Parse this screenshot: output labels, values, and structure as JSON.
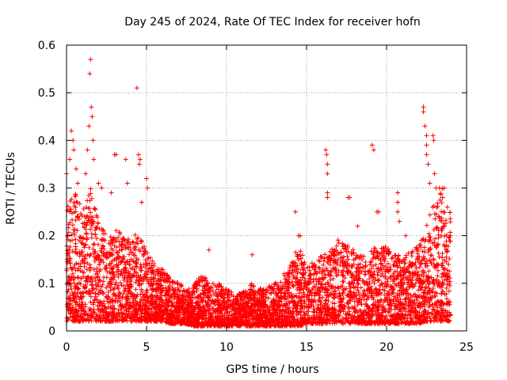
{
  "chart_data": {
    "type": "scatter",
    "title": "Day 245 of 2024, Rate Of TEC Index for receiver hofn",
    "xlabel": "GPS time / hours",
    "ylabel": "ROTI / TECUs",
    "xlim": [
      0,
      25
    ],
    "ylim": [
      0,
      0.6
    ],
    "xticks": [
      "0",
      "5",
      "10",
      "15",
      "20",
      "25"
    ],
    "yticks": [
      "0",
      "0.1",
      "0.2",
      "0.3",
      "0.4",
      "0.5",
      "0.6"
    ],
    "grid": true,
    "marker": "+",
    "colors": {
      "points": "#ff0000",
      "grid": "#a0a0a0",
      "axes": "#000000"
    },
    "envelope": {
      "hours": [
        0,
        0.5,
        1,
        1.5,
        2,
        2.5,
        3,
        3.5,
        4,
        4.5,
        5,
        5.5,
        6,
        6.5,
        7,
        7.5,
        8,
        8.5,
        9,
        9.5,
        10,
        10.5,
        11,
        11.5,
        12,
        12.5,
        13,
        13.5,
        14,
        14.5,
        15,
        15.5,
        16,
        16.5,
        17,
        17.5,
        18,
        18.5,
        19,
        19.5,
        20,
        20.5,
        21,
        21.5,
        22,
        22.5,
        23,
        23.5,
        24
      ],
      "typical_max": [
        0.26,
        0.3,
        0.25,
        0.3,
        0.24,
        0.2,
        0.22,
        0.2,
        0.19,
        0.21,
        0.17,
        0.14,
        0.13,
        0.11,
        0.1,
        0.09,
        0.1,
        0.12,
        0.1,
        0.1,
        0.09,
        0.08,
        0.08,
        0.1,
        0.09,
        0.09,
        0.1,
        0.11,
        0.14,
        0.18,
        0.14,
        0.15,
        0.16,
        0.17,
        0.2,
        0.18,
        0.17,
        0.16,
        0.18,
        0.17,
        0.18,
        0.16,
        0.16,
        0.17,
        0.18,
        0.22,
        0.28,
        0.3,
        0.25
      ],
      "typical_min": [
        0.02,
        0.02,
        0.02,
        0.02,
        0.02,
        0.02,
        0.02,
        0.02,
        0.02,
        0.02,
        0.02,
        0.02,
        0.02,
        0.015,
        0.015,
        0.015,
        0.01,
        0.01,
        0.01,
        0.01,
        0.01,
        0.01,
        0.01,
        0.01,
        0.01,
        0.01,
        0.01,
        0.01,
        0.01,
        0.01,
        0.015,
        0.015,
        0.015,
        0.015,
        0.015,
        0.015,
        0.015,
        0.015,
        0.015,
        0.015,
        0.015,
        0.015,
        0.015,
        0.015,
        0.015,
        0.02,
        0.02,
        0.02,
        0.02
      ]
    },
    "outliers": [
      [
        0.0,
        0.33
      ],
      [
        0.2,
        0.36
      ],
      [
        0.3,
        0.42
      ],
      [
        0.4,
        0.4
      ],
      [
        0.45,
        0.38
      ],
      [
        0.6,
        0.34
      ],
      [
        0.7,
        0.31
      ],
      [
        1.2,
        0.33
      ],
      [
        1.3,
        0.38
      ],
      [
        1.4,
        0.43
      ],
      [
        1.45,
        0.54
      ],
      [
        1.5,
        0.57
      ],
      [
        1.55,
        0.47
      ],
      [
        1.6,
        0.45
      ],
      [
        1.65,
        0.4
      ],
      [
        1.7,
        0.36
      ],
      [
        2.0,
        0.31
      ],
      [
        2.2,
        0.3
      ],
      [
        2.8,
        0.29
      ],
      [
        3.0,
        0.37
      ],
      [
        3.1,
        0.37
      ],
      [
        3.7,
        0.36
      ],
      [
        3.8,
        0.31
      ],
      [
        4.4,
        0.51
      ],
      [
        4.5,
        0.37
      ],
      [
        4.6,
        0.36
      ],
      [
        4.55,
        0.35
      ],
      [
        4.7,
        0.27
      ],
      [
        5.0,
        0.32
      ],
      [
        5.05,
        0.3
      ],
      [
        8.9,
        0.17
      ],
      [
        11.6,
        0.16
      ],
      [
        13.6,
        0.12
      ],
      [
        14.3,
        0.25
      ],
      [
        14.5,
        0.2
      ],
      [
        14.6,
        0.2
      ],
      [
        16.2,
        0.38
      ],
      [
        16.25,
        0.37
      ],
      [
        16.3,
        0.35
      ],
      [
        16.3,
        0.33
      ],
      [
        16.3,
        0.29
      ],
      [
        16.3,
        0.28
      ],
      [
        17.6,
        0.28
      ],
      [
        17.7,
        0.28
      ],
      [
        18.2,
        0.22
      ],
      [
        19.1,
        0.39
      ],
      [
        19.2,
        0.38
      ],
      [
        19.4,
        0.25
      ],
      [
        19.5,
        0.25
      ],
      [
        20.7,
        0.29
      ],
      [
        20.7,
        0.27
      ],
      [
        20.7,
        0.25
      ],
      [
        20.8,
        0.23
      ],
      [
        21.2,
        0.2
      ],
      [
        22.3,
        0.47
      ],
      [
        22.3,
        0.46
      ],
      [
        22.4,
        0.43
      ],
      [
        22.5,
        0.41
      ],
      [
        22.5,
        0.39
      ],
      [
        22.5,
        0.37
      ],
      [
        22.6,
        0.35
      ],
      [
        22.7,
        0.31
      ],
      [
        22.9,
        0.41
      ],
      [
        22.95,
        0.4
      ],
      [
        23.0,
        0.33
      ],
      [
        23.1,
        0.3
      ],
      [
        23.3,
        0.3
      ],
      [
        23.5,
        0.28
      ],
      [
        23.6,
        0.3
      ],
      [
        23.8,
        0.26
      ]
    ]
  }
}
